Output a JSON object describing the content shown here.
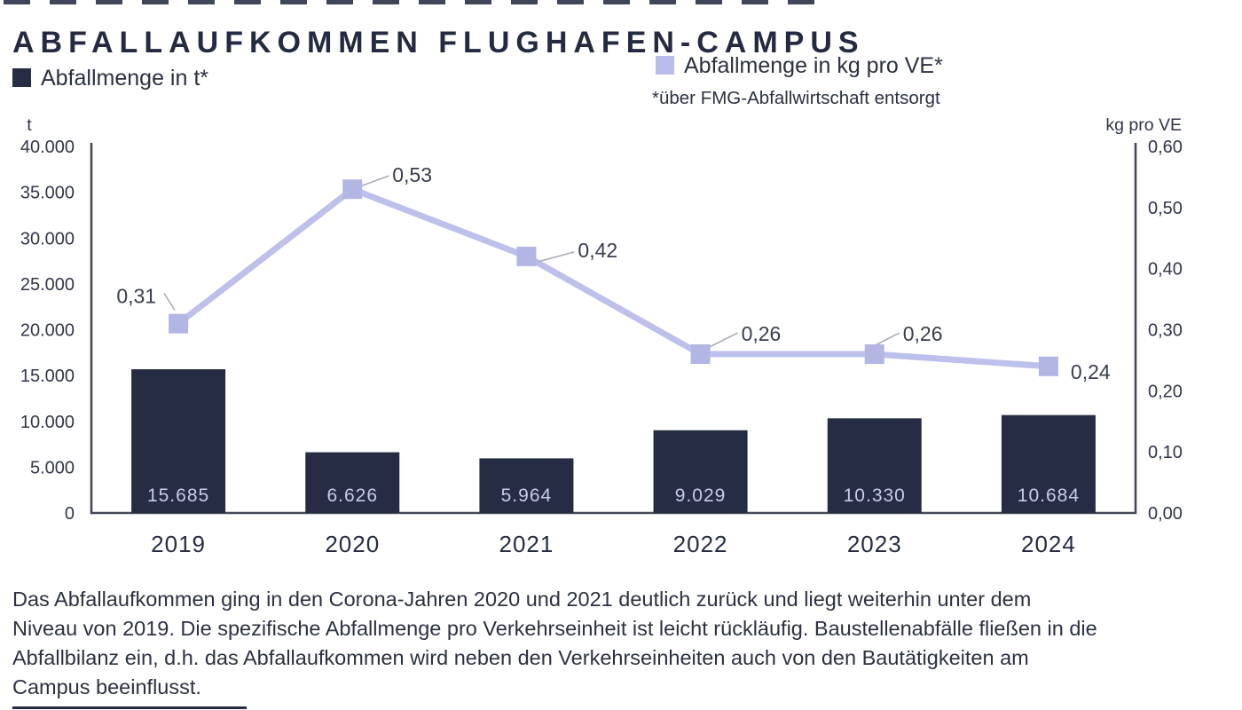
{
  "title": "ABFALLAUFKOMMEN FLUGHAFEN-CAMPUS",
  "legend": {
    "bars_label": "Abfallmenge in t*",
    "line_label": "Abfallmenge in kg pro VE*",
    "footnote": "*über FMG-Abfallwirtschaft entsorgt"
  },
  "colors": {
    "dark_navy": "#262c43",
    "lavender_line": "#bcc0ea",
    "lavender_marker": "#b2b6e3",
    "bar_value_text": "#c9cce8",
    "axis_line": "#454a59",
    "leader_line": "#a8abb6"
  },
  "chart_data": {
    "type": "bar",
    "subtype": "combo bar + line, dual axis",
    "categories": [
      "2019",
      "2020",
      "2021",
      "2022",
      "2023",
      "2024"
    ],
    "series": [
      {
        "name": "Abfallmenge in t*",
        "type": "bar",
        "axis": "left",
        "values": [
          15685,
          6626,
          5964,
          9029,
          10330,
          10684
        ],
        "labels": [
          "15.685",
          "6.626",
          "5.964",
          "9.029",
          "10.330",
          "10.684"
        ]
      },
      {
        "name": "Abfallmenge in kg pro VE*",
        "type": "line",
        "axis": "right",
        "values": [
          0.31,
          0.53,
          0.42,
          0.26,
          0.26,
          0.24
        ],
        "labels": [
          "0,31",
          "0,53",
          "0,42",
          "0,26",
          "0,26",
          "0,24"
        ]
      }
    ],
    "left_axis": {
      "title": "t",
      "min": 0,
      "max": 40000,
      "ticks": [
        "40.000",
        "35.000",
        "30.000",
        "25.000",
        "20.000",
        "15.000",
        "10.000",
        "5.000",
        "0"
      ]
    },
    "right_axis": {
      "title": "kg pro VE",
      "min": 0,
      "max": 0.6,
      "ticks": [
        "0,60",
        "0,50",
        "0,40",
        "0,30",
        "0,20",
        "0,10",
        "0,00"
      ]
    },
    "grid": "off",
    "legend_position": "top"
  },
  "description_lines": [
    "Das Abfallaufkommen ging in den Corona-Jahren 2020 und 2021 deutlich zurück und liegt weiterhin unter dem",
    "Niveau von 2019. Die spezifische Abfallmenge pro Verkehrseinheit ist leicht rückläufig. Baustellenabfälle fließen in die",
    "Abfallbilanz ein, d.h. das Abfallaufkommen wird neben den Verkehrseinheiten auch von den Bautätigkeiten am",
    "Campus beeinflusst."
  ]
}
